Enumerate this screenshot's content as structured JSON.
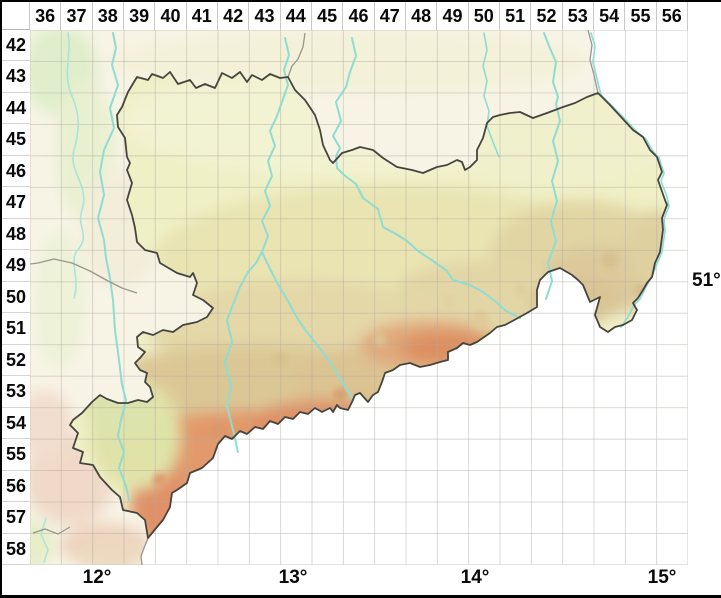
{
  "grid": {
    "columns": [
      "36",
      "37",
      "38",
      "39",
      "40",
      "41",
      "42",
      "43",
      "44",
      "45",
      "46",
      "47",
      "48",
      "49",
      "50",
      "51",
      "52",
      "53",
      "54",
      "55",
      "56"
    ],
    "rows": [
      "42",
      "43",
      "44",
      "45",
      "46",
      "47",
      "48",
      "49",
      "50",
      "51",
      "52",
      "53",
      "54",
      "55",
      "56",
      "57",
      "58"
    ]
  },
  "axis": {
    "longitude": [
      "12°",
      "13°",
      "14°",
      "15°"
    ],
    "latitude": [
      "51°"
    ]
  },
  "map": {
    "region": "Sachsen",
    "colors": {
      "no_data_white": "#ffffff",
      "lowland": "#eff0c6",
      "midland_yellow": "#e9e4b2",
      "upland_tan": "#dbc795",
      "mountain_orange": "#e2996b",
      "outside_base": "#f7f4e6",
      "outside_pink": "#f0d9c8",
      "river": "#8fdcd2",
      "state_border": "#45443e",
      "other_border": "#9a968e",
      "grid_line": "#b2aba3",
      "header_text": "#0a0a0a"
    }
  }
}
